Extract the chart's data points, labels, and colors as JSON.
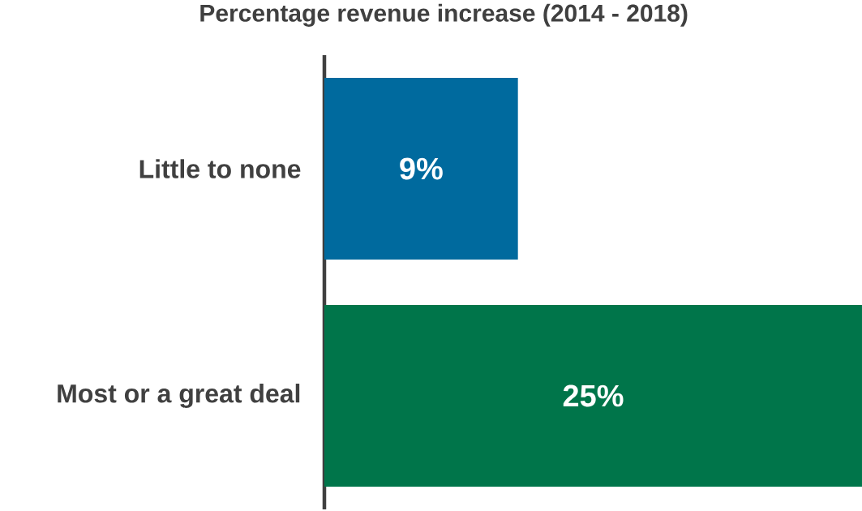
{
  "chart_data": {
    "type": "bar",
    "orientation": "horizontal",
    "title": "Percentage revenue increase (2014 - 2018)",
    "categories": [
      "Little to none",
      "Most or a great deal"
    ],
    "values": [
      9,
      25
    ],
    "value_labels": [
      "9%",
      "25%"
    ],
    "colors": [
      "#006a9e",
      "#00754a"
    ]
  }
}
